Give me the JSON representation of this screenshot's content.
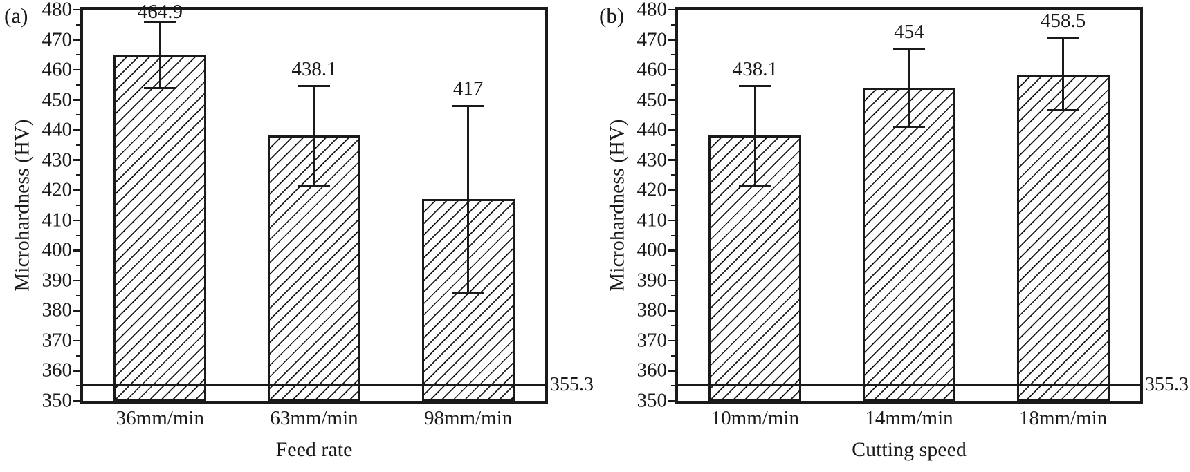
{
  "figure": {
    "background": "#ffffff",
    "ink": "#1a1a1a"
  },
  "chart_data": [
    {
      "type": "bar",
      "tag": "(a)",
      "title": "",
      "xlabel": "Feed rate",
      "ylabel": "Microhardness (HV)",
      "ylim": [
        350,
        480
      ],
      "ytick_step": 10,
      "ytick_minor_step": 5,
      "grid": false,
      "legend": "none",
      "bar_style": "diagonal-hatch",
      "categories": [
        "36mm/min",
        "63mm/min",
        "98mm/min"
      ],
      "values": [
        464.9,
        438.1,
        417
      ],
      "value_labels": [
        "464.9",
        "438.1",
        "417"
      ],
      "errors": [
        11,
        16.5,
        31
      ],
      "reference_line": {
        "value": 355.3,
        "label": "355.3"
      }
    },
    {
      "type": "bar",
      "tag": "(b)",
      "title": "",
      "xlabel": "Cutting speed",
      "ylabel": "Microhardness (HV)",
      "ylim": [
        350,
        480
      ],
      "ytick_step": 10,
      "ytick_minor_step": 5,
      "grid": false,
      "legend": "none",
      "bar_style": "diagonal-hatch",
      "categories": [
        "10mm/min",
        "14mm/min",
        "18mm/min"
      ],
      "values": [
        438.1,
        454,
        458.5
      ],
      "value_labels": [
        "438.1",
        "454",
        "458.5"
      ],
      "errors": [
        16.5,
        13,
        12
      ],
      "reference_line": {
        "value": 355.3,
        "label": "355.3"
      }
    }
  ]
}
